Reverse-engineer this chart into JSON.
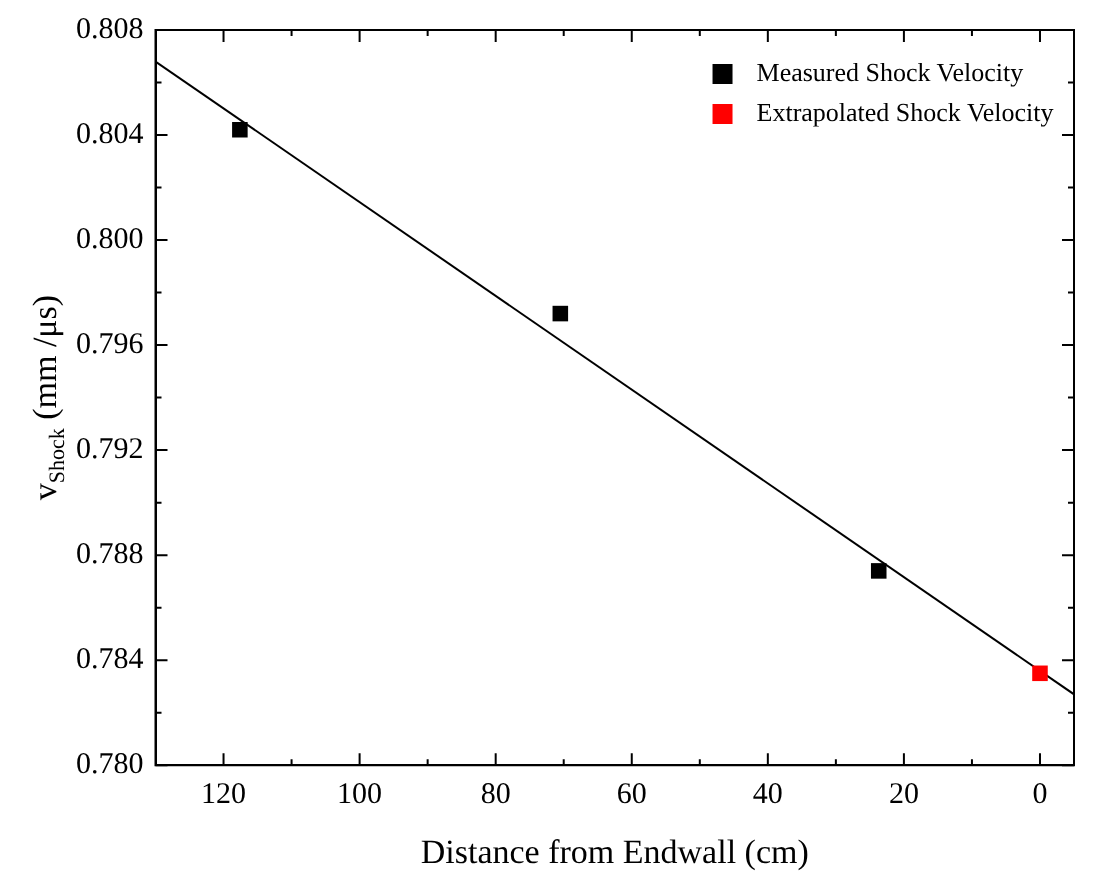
{
  "chart_data": {
    "type": "scatter",
    "xlabel": "Distance from Endwall (cm)",
    "ylabel": "v$_{Shock}$ (mm /μs)",
    "xlim": [
      130,
      -5
    ],
    "ylim": [
      0.78,
      0.808
    ],
    "xticks": [
      120,
      {
        "value": 110,
        "label": null
      },
      100,
      {
        "value": 90,
        "label": null
      },
      80,
      {
        "value": 70,
        "label": null
      },
      60,
      {
        "value": 50,
        "label": null
      },
      40,
      {
        "value": 30,
        "label": null
      },
      20,
      {
        "value": 10,
        "label": null
      },
      0
    ],
    "yticks": [
      {
        "value": 0.78,
        "label": "0.780"
      },
      {
        "value": 0.782,
        "label": null
      },
      {
        "value": 0.784,
        "label": "0.784"
      },
      {
        "value": 0.786,
        "label": null
      },
      {
        "value": 0.788,
        "label": "0.788"
      },
      {
        "value": 0.79,
        "label": null
      },
      {
        "value": 0.792,
        "label": "0.792"
      },
      {
        "value": 0.794,
        "label": null
      },
      {
        "value": 0.796,
        "label": "0.796"
      },
      {
        "value": 0.798,
        "label": null
      },
      {
        "value": 0.8,
        "label": "0.800"
      },
      {
        "value": 0.802,
        "label": null
      },
      {
        "value": 0.804,
        "label": "0.804"
      },
      {
        "value": 0.806,
        "label": null
      },
      {
        "value": 0.808,
        "label": "0.808"
      }
    ],
    "legend": "top right",
    "marker": "square",
    "series": [
      {
        "name": "Measured Shock Velocity",
        "color": "#000000",
        "x": [
          117.6,
          70.5,
          23.7
        ],
        "values": [
          0.8042,
          0.7972,
          0.7874
        ]
      },
      {
        "name": "Extrapolated Shock Velocity",
        "color": "#ff0000",
        "x": [
          0
        ],
        "values": [
          0.7835
        ]
      },
      {
        "type": "line",
        "color": "#000000",
        "marker": "none",
        "x": [
          130,
          -5
        ],
        "values": [
          0.8068,
          0.7827
        ]
      }
    ]
  }
}
